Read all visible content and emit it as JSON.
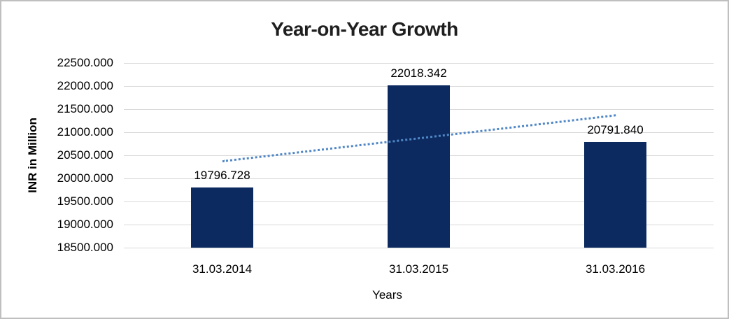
{
  "chart_data": {
    "type": "bar",
    "title": "Year-on-Year Growth",
    "xlabel": "Years",
    "ylabel": "INR in Million",
    "categories": [
      "31.03.2014",
      "31.03.2015",
      "31.03.2016"
    ],
    "values": [
      19796.728,
      22018.342,
      20791.84
    ],
    "data_labels": [
      "19796.728",
      "22018.342",
      "20791.840"
    ],
    "ylim": [
      18500,
      22500
    ],
    "ytick_step": 500,
    "ytick_labels": [
      "22500.000",
      "22000.000",
      "21500.000",
      "21000.000",
      "20500.000",
      "20000.000",
      "19500.000",
      "19000.000",
      "18500.000"
    ],
    "grid": true,
    "legend_position": "none",
    "colors": {
      "bar": "#0C2A60",
      "trendline": "#4F86C6",
      "gridline": "#D9D9D9",
      "title_text": "#1F1F1F",
      "axis_text": "#000000",
      "frame_border": "#BFBFBF",
      "background": "#FFFFFF"
    },
    "trendline": {
      "type": "linear",
      "style": "dotted",
      "span": "first-to-last-category"
    }
  }
}
